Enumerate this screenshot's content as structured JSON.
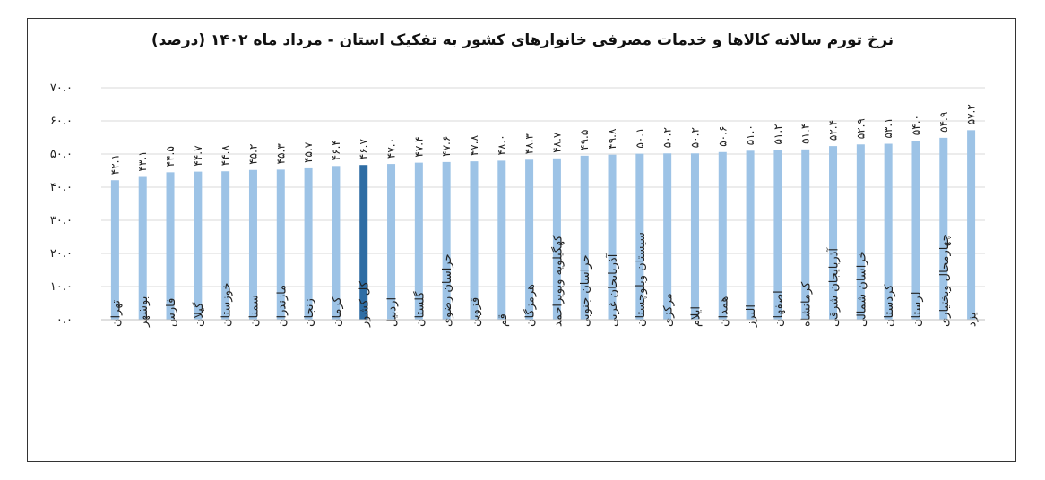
{
  "chart_data": {
    "type": "bar",
    "title": "نرخ تورم سالانه کالاها و خدمات مصرفی خانوارهای کشور به تفکیک استان - مرداد ماه ۱۴۰۲ (درصد)",
    "xlabel": "",
    "ylabel": "",
    "ylim": [
      0,
      70
    ],
    "y_ticks": [
      "۰.۰",
      "۱۰.۰",
      "۲۰.۰",
      "۳۰.۰",
      "۴۰.۰",
      "۵۰.۰",
      "۶۰.۰",
      "۷۰.۰"
    ],
    "y_tick_values": [
      0,
      10,
      20,
      30,
      40,
      50,
      60,
      70
    ],
    "grid": true,
    "bar_color": "#9dc3e6",
    "highlight_color": "#2e6da4",
    "highlight_category": "کل کشور",
    "categories": [
      "تهران",
      "بوشهر",
      "فارس",
      "گیلان",
      "خوزستان",
      "سمنان",
      "مازندران",
      "زنجان",
      "کرمان",
      "کل کشور",
      "اردبیل",
      "گلستان",
      "خراسان رضوی",
      "قزوین",
      "قم",
      "هرمزگان",
      "کهگیلویه وبویراحمد",
      "خراسان جنوبی",
      "آذربایجان غربی",
      "سیستان وبلوچستان",
      "مرکزی",
      "ایلام",
      "همدان",
      "البرز",
      "اصفهان",
      "کرمانشاه",
      "آذربایجان شرقی",
      "خراسان شمالی",
      "کردستان",
      "لرستان",
      "چهارمحال وبختیاری",
      "یزد"
    ],
    "values": [
      42.1,
      43.1,
      44.5,
      44.7,
      44.8,
      45.2,
      45.3,
      45.7,
      46.4,
      46.7,
      47.0,
      47.4,
      47.6,
      47.8,
      48.0,
      48.3,
      48.7,
      49.5,
      49.8,
      50.1,
      50.2,
      50.2,
      50.6,
      51.0,
      51.2,
      51.4,
      52.4,
      52.9,
      53.1,
      54.0,
      54.9,
      57.2
    ],
    "value_labels": [
      "۴۲.۱",
      "۴۳.۱",
      "۴۴.۵",
      "۴۴.۷",
      "۴۴.۸",
      "۴۵.۲",
      "۴۵.۳",
      "۴۵.۷",
      "۴۶.۴",
      "۴۶.۷",
      "۴۷.۰",
      "۴۷.۴",
      "۴۷.۶",
      "۴۷.۸",
      "۴۸.۰",
      "۴۸.۳",
      "۴۸.۷",
      "۴۹.۵",
      "۴۹.۸",
      "۵۰.۱",
      "۵۰.۲",
      "۵۰.۲",
      "۵۰.۶",
      "۵۱.۰",
      "۵۱.۲",
      "۵۱.۴",
      "۵۲.۴",
      "۵۲.۹",
      "۵۳.۱",
      "۵۴.۰",
      "۵۴.۹",
      "۵۷.۲"
    ]
  }
}
